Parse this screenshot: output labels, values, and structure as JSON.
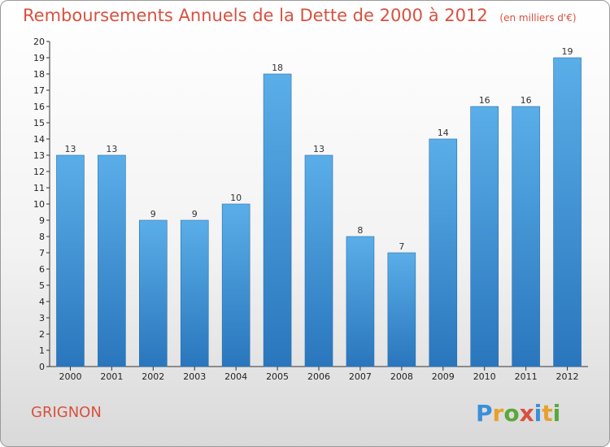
{
  "chart_data": {
    "type": "bar",
    "title": "Remboursements Annuels de la Dette de 2000 à 2012",
    "unit": "(en milliers d'€)",
    "categories": [
      "2000",
      "2001",
      "2002",
      "2003",
      "2004",
      "2005",
      "2006",
      "2007",
      "2008",
      "2009",
      "2010",
      "2011",
      "2012"
    ],
    "values": [
      13,
      13,
      9,
      9,
      10,
      18,
      13,
      8,
      7,
      14,
      16,
      16,
      19
    ],
    "ylim": [
      0,
      20
    ],
    "yticks": [
      0,
      1,
      2,
      3,
      4,
      5,
      6,
      7,
      8,
      9,
      10,
      11,
      12,
      13,
      14,
      15,
      16,
      17,
      18,
      19,
      20
    ],
    "xlabel": "",
    "ylabel": "",
    "grid": false,
    "bar_color": "#4a9fe0",
    "bar_color_dark": "#2a78c0"
  },
  "commune": "GRIGNON",
  "brand": {
    "name": "Proxiti"
  },
  "colors": {
    "title": "#d8513f"
  }
}
